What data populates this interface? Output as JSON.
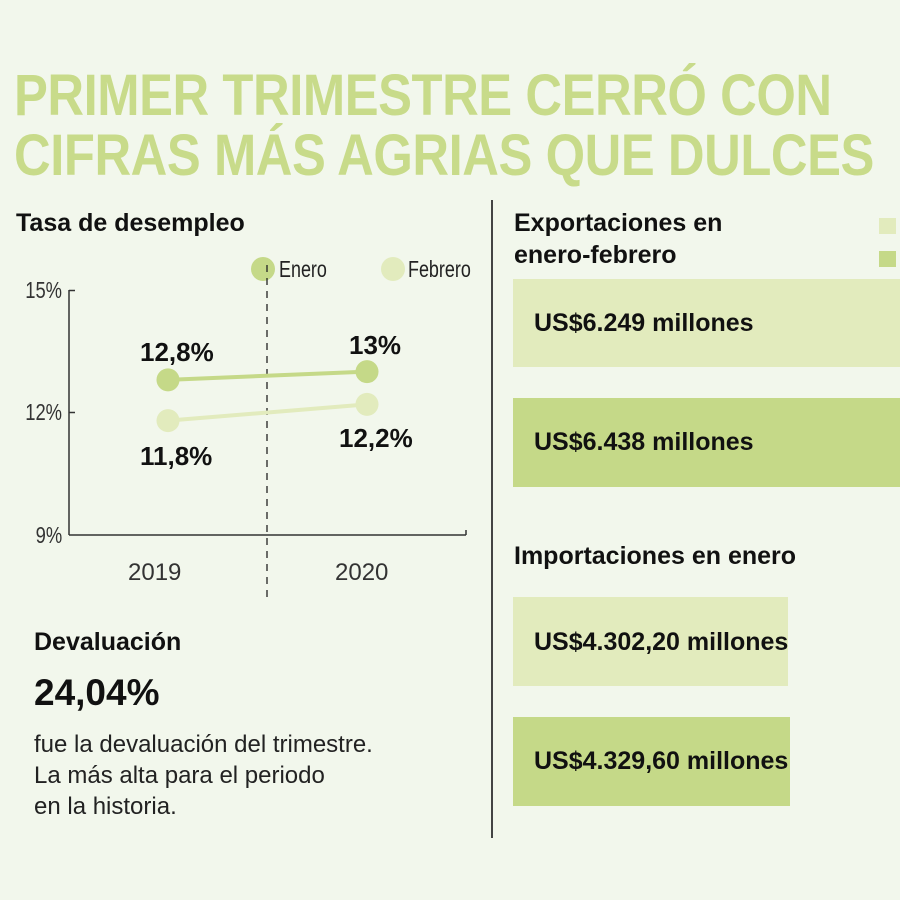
{
  "title": {
    "line1": "PRIMER TRIMESTRE CERRÓ CON",
    "line2": "CIFRAS MÁS AGRIAS QUE DULCES"
  },
  "colors": {
    "background": "#f2f7ec",
    "title": "#c8db8a",
    "enero": "#c5d988",
    "febrero": "#e2ebbd",
    "axis": "#333333"
  },
  "unemployment": {
    "heading": "Tasa de desempleo",
    "legend": [
      {
        "label": "Enero",
        "color": "#c5d988"
      },
      {
        "label": "Febrero",
        "color": "#e2ebbd"
      }
    ],
    "y_ticks": [
      "15%",
      "12%",
      "9%"
    ],
    "x_labels": [
      "2019",
      "2020"
    ],
    "labels": {
      "enero_2019": "12,8%",
      "enero_2020": "13%",
      "febrero_2019": "11,8%",
      "febrero_2020": "12,2%"
    }
  },
  "chart_data": {
    "type": "line",
    "title": "Tasa de desempleo",
    "xlabel": "",
    "ylabel": "",
    "categories": [
      "2019",
      "2020"
    ],
    "series": [
      {
        "name": "Enero",
        "values": [
          12.8,
          13.0
        ],
        "color": "#c5d988"
      },
      {
        "name": "Febrero",
        "values": [
          11.8,
          12.2
        ],
        "color": "#e2ebbd"
      }
    ],
    "ylim": [
      9,
      15
    ],
    "y_ticks": [
      9,
      12,
      15
    ],
    "grid": false,
    "legend_position": "top-right",
    "annotations": [
      "12,8%",
      "13%",
      "11,8%",
      "12,2%"
    ]
  },
  "devaluation": {
    "heading": "Devaluación",
    "value": "24,04%",
    "lines": [
      "fue la devaluación del trimestre.",
      "La más alta para el periodo",
      "en la historia."
    ]
  },
  "exports": {
    "heading_line1": "Exportaciones en",
    "heading_line2": "enero-febrero",
    "bars": [
      {
        "label": "US$6.249 millones",
        "color": "#e2ebbd"
      },
      {
        "label": "US$6.438 millones",
        "color": "#c5d988"
      }
    ]
  },
  "imports": {
    "heading": "Importaciones en enero",
    "bars": [
      {
        "label": "US$4.302,20 millones",
        "color": "#e2ebbd"
      },
      {
        "label": "US$4.329,60 millones",
        "color": "#c5d988"
      }
    ]
  }
}
